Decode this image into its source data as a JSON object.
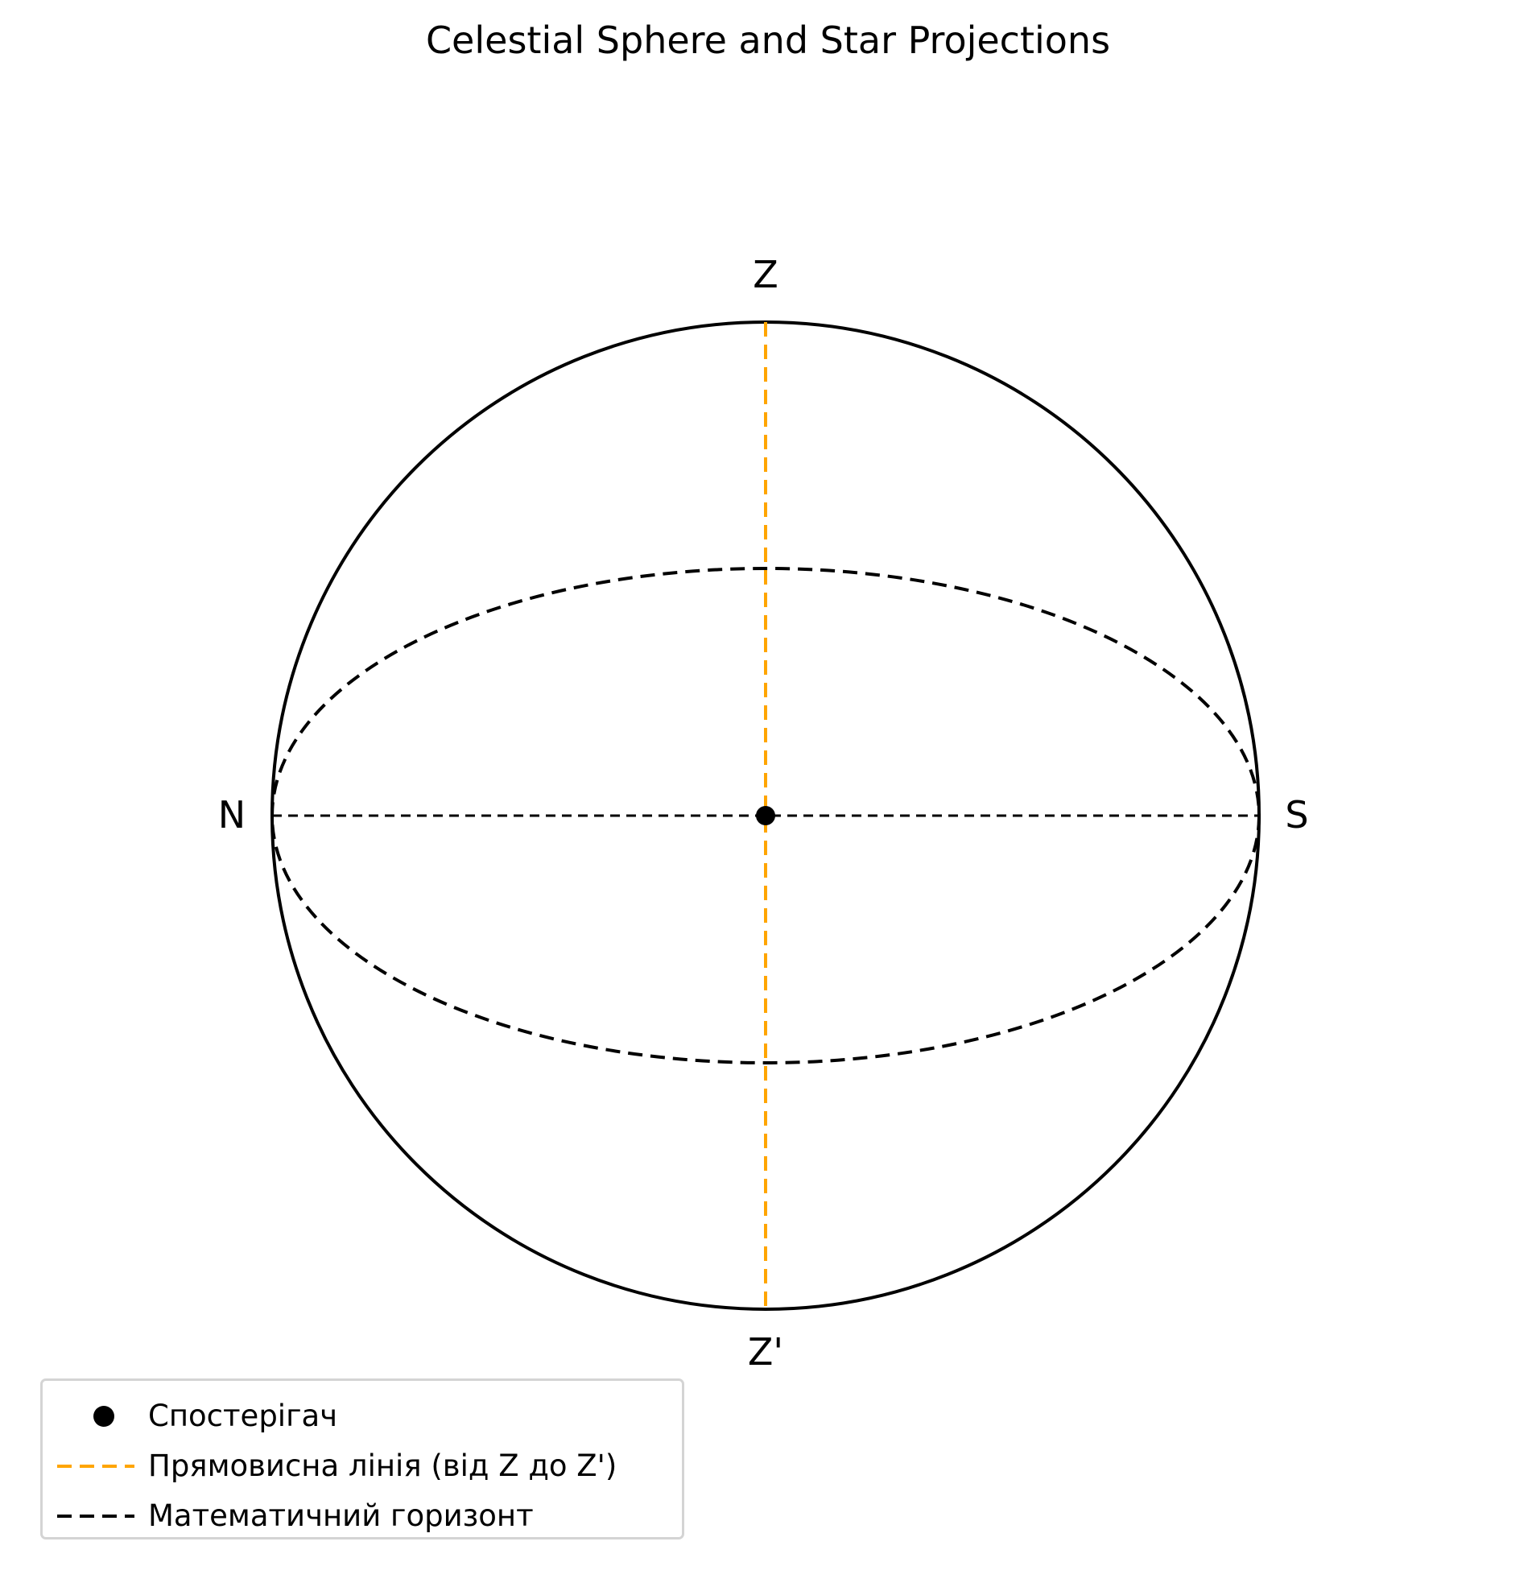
{
  "title": "Celestial Sphere and Star Projections",
  "points": {
    "zenith": "Z",
    "nadir": "Z'",
    "north": "N",
    "south": "S"
  },
  "legend": [
    {
      "label": "Спостерігач",
      "marker": "dot",
      "color": "#000000"
    },
    {
      "label": "Прямовисна лінія (від Z до Z')",
      "marker": "dashed-line",
      "color": "#ffa500"
    },
    {
      "label": "Математичний горизонт",
      "marker": "dashed-line",
      "color": "#000000"
    }
  ],
  "colors": {
    "sphere": "#000000",
    "plumb_line": "#ffa500",
    "horizon": "#000000",
    "observer": "#000000"
  }
}
